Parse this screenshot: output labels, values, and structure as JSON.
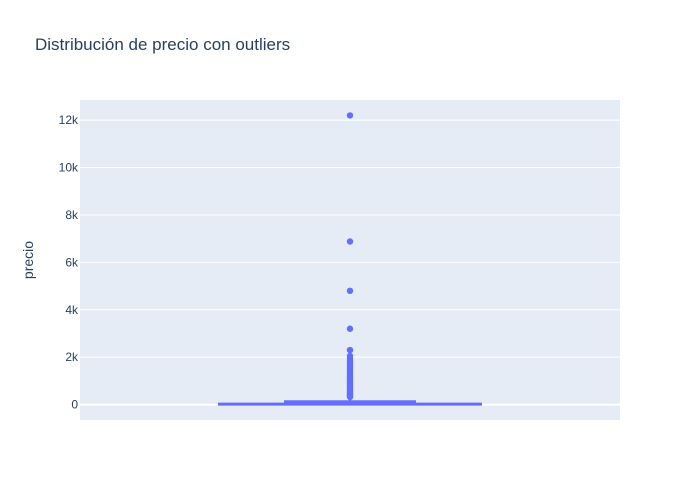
{
  "chart_data": {
    "type": "box",
    "title": "Distribución de precio con outliers",
    "xlabel": "",
    "ylabel": "precio",
    "ylim": [
      -650,
      12850
    ],
    "yticks": [
      0,
      2000,
      4000,
      6000,
      8000,
      10000,
      12000
    ],
    "ytick_labels": [
      "0",
      "2k",
      "4k",
      "6k",
      "8k",
      "10k",
      "12k"
    ],
    "grid": true,
    "colors": {
      "plot_bg": "#e5ecf6",
      "grid": "#ffffff",
      "box": "#636efa",
      "text": "#2a3f5f"
    },
    "box": {
      "min": 0,
      "q1": 35,
      "median": 70,
      "q3": 140,
      "upper_fence": 295
    },
    "outliers": [
      12200,
      6880,
      4800,
      3200,
      2300,
      2050,
      1950,
      1850,
      1780,
      1700,
      1620,
      1550,
      1480,
      1420,
      1360,
      1300,
      1240,
      1180,
      1120,
      1060,
      1000,
      940,
      880,
      820,
      760,
      700,
      650,
      600,
      550,
      500,
      460,
      420,
      380,
      350,
      320
    ]
  }
}
